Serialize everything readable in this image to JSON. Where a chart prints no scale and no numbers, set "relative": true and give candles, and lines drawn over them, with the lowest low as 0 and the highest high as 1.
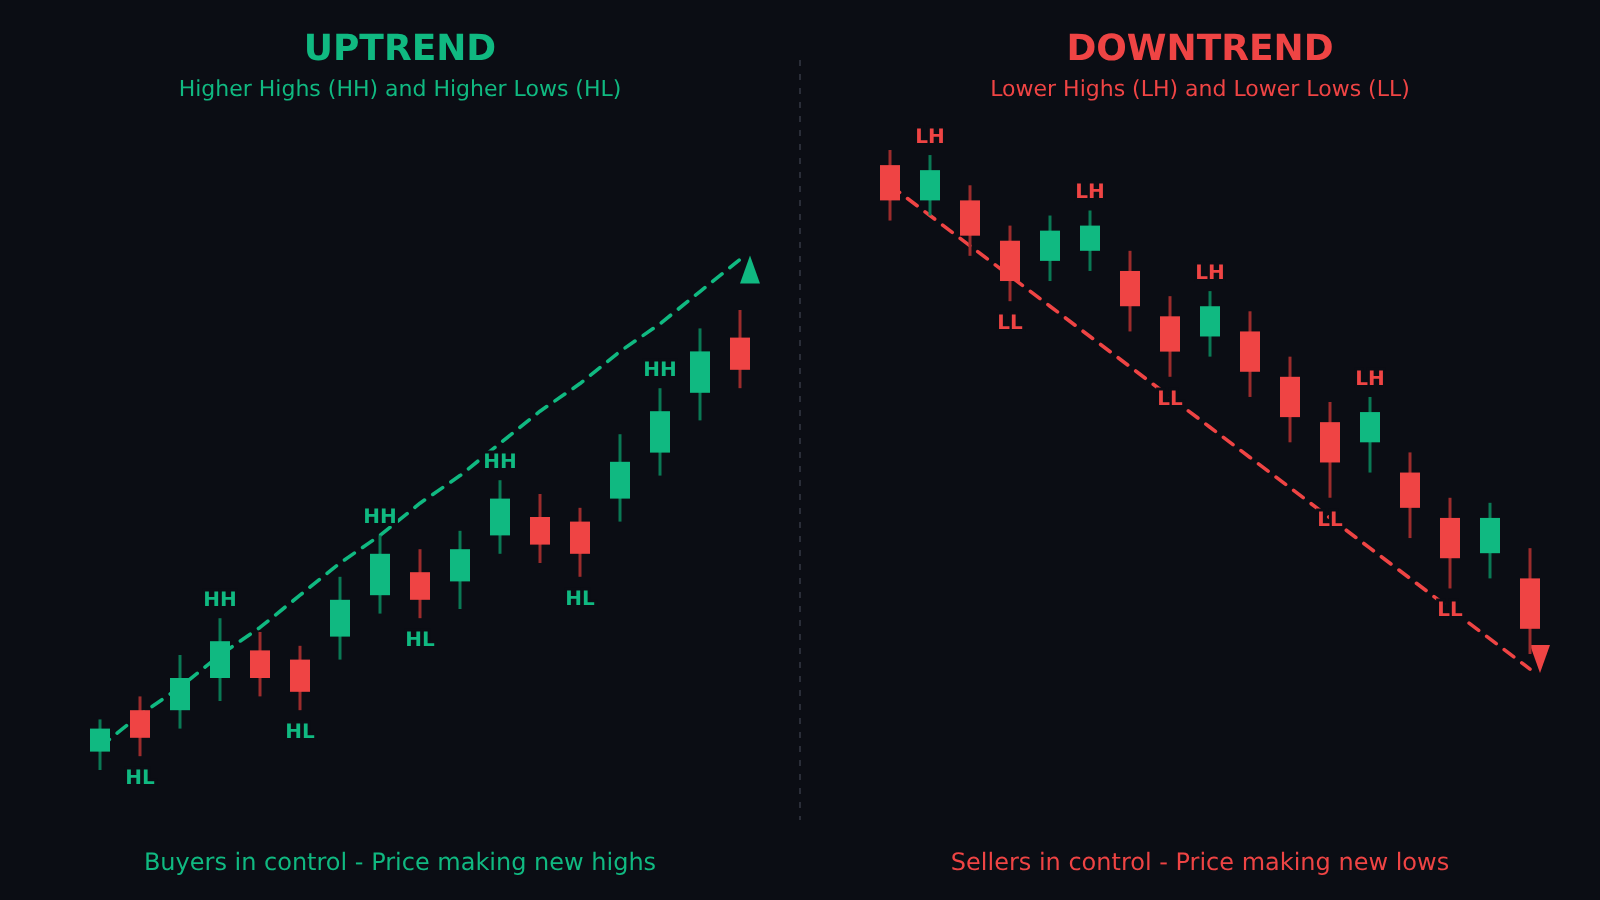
{
  "chart_data": [
    {
      "type": "candlestick",
      "title": "UPTREND",
      "subtitle": "Higher Highs (HH) and Higher Lows (HL)",
      "relative": true,
      "categories": [
        null,
        null,
        null,
        null,
        null,
        null,
        null,
        null,
        null,
        null,
        null,
        null,
        null,
        null,
        null,
        null,
        null
      ],
      "ohlc": [
        [
          0.04,
          0.11,
          0,
          0.09
        ],
        [
          0.13,
          0.16,
          0.03,
          0.07
        ],
        [
          0.13,
          0.25,
          0.09,
          0.2
        ],
        [
          0.2,
          0.33,
          0.15,
          0.28
        ],
        [
          0.26,
          0.3,
          0.16,
          0.2
        ],
        [
          0.24,
          0.27,
          0.13,
          0.17
        ],
        [
          0.29,
          0.42,
          0.24,
          0.37
        ],
        [
          0.38,
          0.51,
          0.34,
          0.47
        ],
        [
          0.43,
          0.48,
          0.33,
          0.37
        ],
        [
          0.41,
          0.52,
          0.35,
          0.48
        ],
        [
          0.51,
          0.63,
          0.47,
          0.59
        ],
        [
          0.55,
          0.6,
          0.45,
          0.49
        ],
        [
          0.54,
          0.57,
          0.42,
          0.47
        ],
        [
          0.59,
          0.73,
          0.54,
          0.67
        ],
        [
          0.69,
          0.83,
          0.64,
          0.78
        ],
        [
          0.82,
          0.96,
          0.76,
          0.91
        ],
        [
          0.94,
          1,
          0.83,
          0.87
        ]
      ],
      "colors": [
        "#10b981",
        "#ef4444",
        "#10b981",
        "#10b981",
        "#ef4444",
        "#ef4444",
        "#10b981",
        "#10b981",
        "#ef4444",
        "#10b981",
        "#10b981",
        "#ef4444",
        "#ef4444",
        "#10b981",
        "#10b981",
        "#10b981",
        "#ef4444"
      ],
      "value_labels": [
        null,
        "HL",
        null,
        "HH",
        null,
        "HL",
        null,
        "HH",
        "HL",
        null,
        "HH",
        null,
        "HL",
        null,
        "HH",
        null,
        null
      ],
      "series": [
        {
          "type": "line",
          "color": "#10b981",
          "line_style": "dashed",
          "values": [
            0.05,
            0.12,
            0.18,
            0.25,
            0.31,
            0.38,
            0.45,
            0.51,
            0.58,
            0.64,
            0.71,
            0.78,
            0.84,
            0.91,
            0.97,
            1.04,
            1.11
          ]
        }
      ],
      "annotations": [
        "Buyers in control - Price making new highs"
      ]
    },
    {
      "type": "candlestick",
      "title": "DOWNTREND",
      "subtitle": "Lower Highs (LH) and Lower Lows (LL)",
      "relative": true,
      "categories": [
        null,
        null,
        null,
        null,
        null,
        null,
        null,
        null,
        null,
        null,
        null,
        null,
        null,
        null,
        null,
        null,
        null
      ],
      "ohlc": [
        [
          0.97,
          1,
          0.86,
          0.9
        ],
        [
          0.9,
          0.99,
          0.87,
          0.96
        ],
        [
          0.9,
          0.93,
          0.79,
          0.83
        ],
        [
          0.82,
          0.85,
          0.7,
          0.74
        ],
        [
          0.78,
          0.87,
          0.74,
          0.84
        ],
        [
          0.8,
          0.88,
          0.76,
          0.85
        ],
        [
          0.76,
          0.8,
          0.64,
          0.69
        ],
        [
          0.67,
          0.71,
          0.55,
          0.6
        ],
        [
          0.63,
          0.72,
          0.59,
          0.69
        ],
        [
          0.64,
          0.68,
          0.51,
          0.56
        ],
        [
          0.55,
          0.59,
          0.42,
          0.47
        ],
        [
          0.46,
          0.5,
          0.31,
          0.38
        ],
        [
          0.42,
          0.51,
          0.36,
          0.48
        ],
        [
          0.36,
          0.4,
          0.23,
          0.29
        ],
        [
          0.27,
          0.31,
          0.13,
          0.19
        ],
        [
          0.2,
          0.3,
          0.15,
          0.27
        ],
        [
          0.15,
          0.21,
          0,
          0.05
        ]
      ],
      "colors": [
        "#ef4444",
        "#10b981",
        "#ef4444",
        "#ef4444",
        "#10b981",
        "#10b981",
        "#ef4444",
        "#ef4444",
        "#10b981",
        "#ef4444",
        "#ef4444",
        "#ef4444",
        "#10b981",
        "#ef4444",
        "#ef4444",
        "#10b981",
        "#ef4444"
      ],
      "value_labels": [
        null,
        "LH",
        null,
        "LL",
        null,
        "LH",
        null,
        "LL",
        "LH",
        null,
        null,
        "LL",
        "LH",
        null,
        "LL",
        null,
        null
      ],
      "series": [
        {
          "type": "line",
          "color": "#ef4444",
          "line_style": "dashed",
          "values": [
            0.93,
            0.87,
            0.81,
            0.75,
            0.69,
            0.63,
            0.57,
            0.51,
            0.45,
            0.39,
            0.33,
            0.27,
            0.21,
            0.15,
            0.09,
            0.03,
            -0.03
          ]
        }
      ],
      "annotations": [
        "Sellers in control - Price making new lows"
      ]
    }
  ]
}
